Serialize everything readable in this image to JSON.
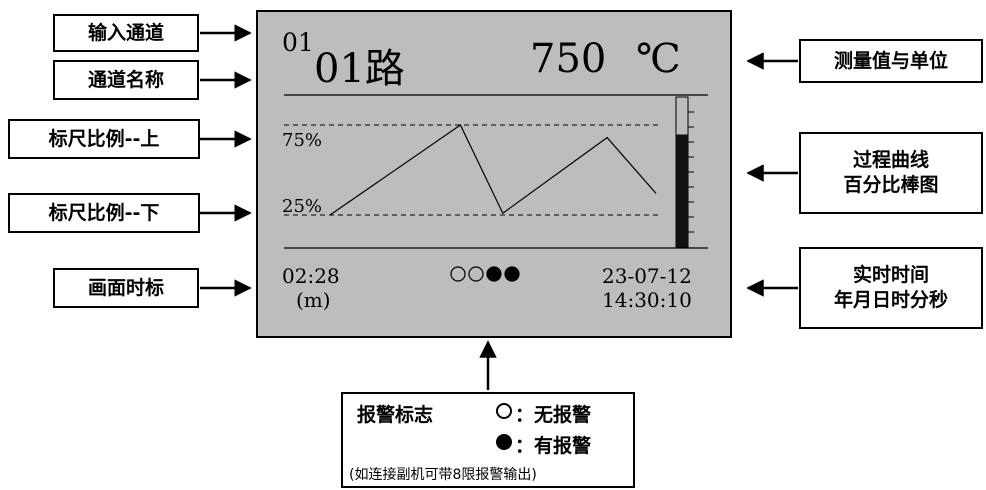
{
  "labels": {
    "input_channel": "输入通道",
    "channel_name": "通道名称",
    "scale_upper": "标尺比例--上",
    "scale_lower": "标尺比例--下",
    "screen_time_scale": "画面时标",
    "measurement_unit": "测量值与单位",
    "process_curve_line1": "过程曲线",
    "process_curve_line2": "百分比棒图",
    "realtime_line1": "实时时间",
    "realtime_line2": "年月日时分秒"
  },
  "screen": {
    "channel_no": "01",
    "channel_name": "01路",
    "value": "750",
    "unit": "℃",
    "scale_upper": "75%",
    "scale_lower": "25%",
    "time_scale": "02:28",
    "time_unit": "(m)",
    "date": "23-07-12",
    "time": "14:30:10",
    "alarm_states": [
      false,
      false,
      true,
      true
    ],
    "bar_percent": 75
  },
  "trend_points": [
    {
      "x": 0,
      "y": 25
    },
    {
      "x": 40,
      "y": 75
    },
    {
      "x": 53,
      "y": 26
    },
    {
      "x": 85,
      "y": 68
    },
    {
      "x": 100,
      "y": 37
    }
  ],
  "alarm_legend": {
    "title": "报警标志",
    "no_alarm": "：无报警",
    "alarm": "：有报警",
    "note": "(如连接副机可带8限报警输出)"
  }
}
